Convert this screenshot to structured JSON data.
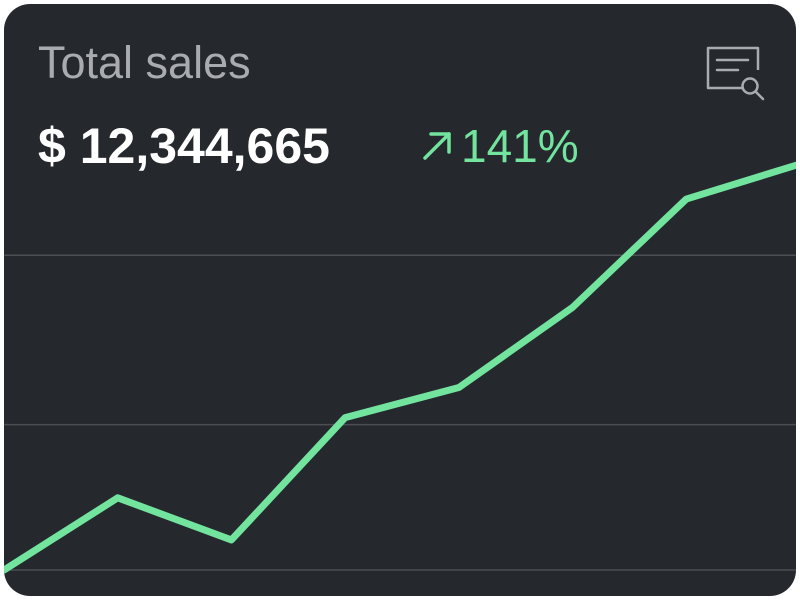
{
  "widget": {
    "title": "Total sales",
    "amount": "$ 12,344,665",
    "change": "141%",
    "change_direction": "up",
    "report_icon": "report-search-icon",
    "colors": {
      "background": "#25282d",
      "title": "#a9abaf",
      "amount": "#ffffff",
      "accent": "#72e49e",
      "gridline": "#4b4e53"
    }
  },
  "chart_data": {
    "type": "line",
    "x": [
      0,
      1,
      2,
      3,
      4,
      5,
      6,
      7
    ],
    "series": [
      {
        "values": [
          0,
          72,
          30,
          152,
          182,
          262,
          370,
          405
        ]
      }
    ],
    "ylim": [
      0,
      405
    ],
    "grid": "horizontal",
    "gridline_values": [
      0,
      145,
      314
    ]
  }
}
